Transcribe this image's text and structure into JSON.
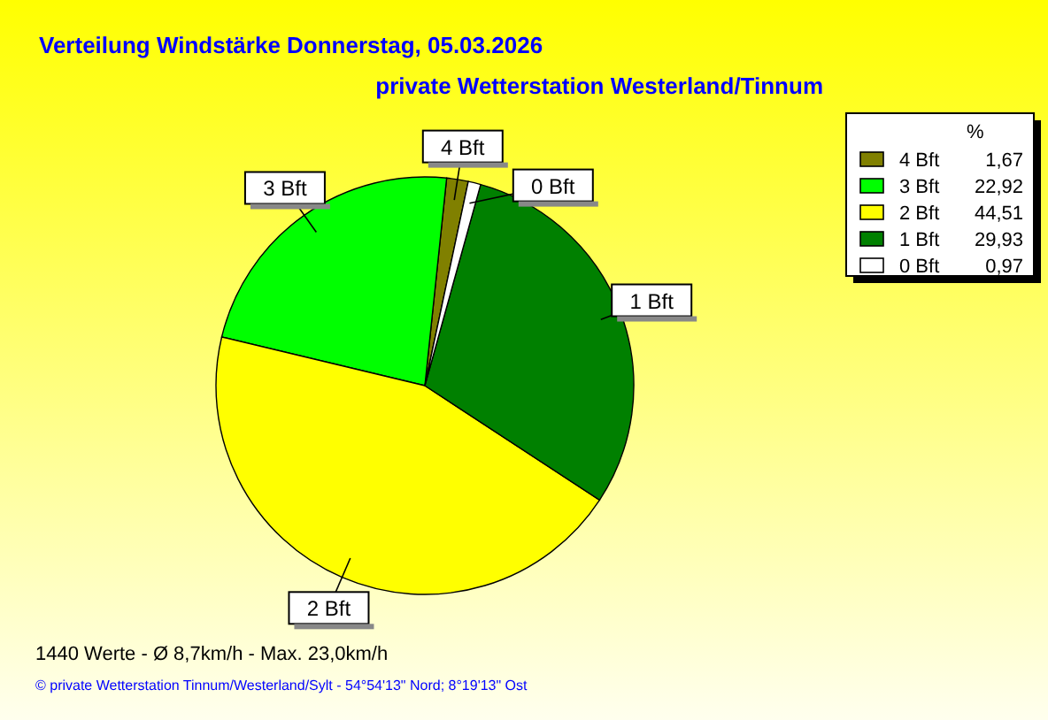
{
  "chart_data": {
    "type": "pie",
    "title": "Verteilung Windstärke  Donnerstag, 05.03.2026",
    "subtitle": "private Wetterstation Westerland/Tinnum",
    "categories": [
      "4 Bft",
      "3 Bft",
      "2 Bft",
      "1 Bft",
      "0 Bft"
    ],
    "values": [
      1.67,
      22.92,
      44.51,
      29.93,
      0.97
    ],
    "value_labels": [
      "1,67",
      "22,92",
      "44,51",
      "29,93",
      "0,97"
    ],
    "colors": [
      "#808000",
      "#00ff00",
      "#ffff00",
      "#008000",
      "#ffffff"
    ],
    "legend": "top right",
    "legend_title": "%",
    "annotations": [
      "1440 Werte   -   Ø 8,7km/h  -  Max. 23,0km/h",
      "© private Wetterstation Tinnum/Westerland/Sylt   -   54°54'13\" Nord; 8°19'13\" Ost"
    ]
  }
}
